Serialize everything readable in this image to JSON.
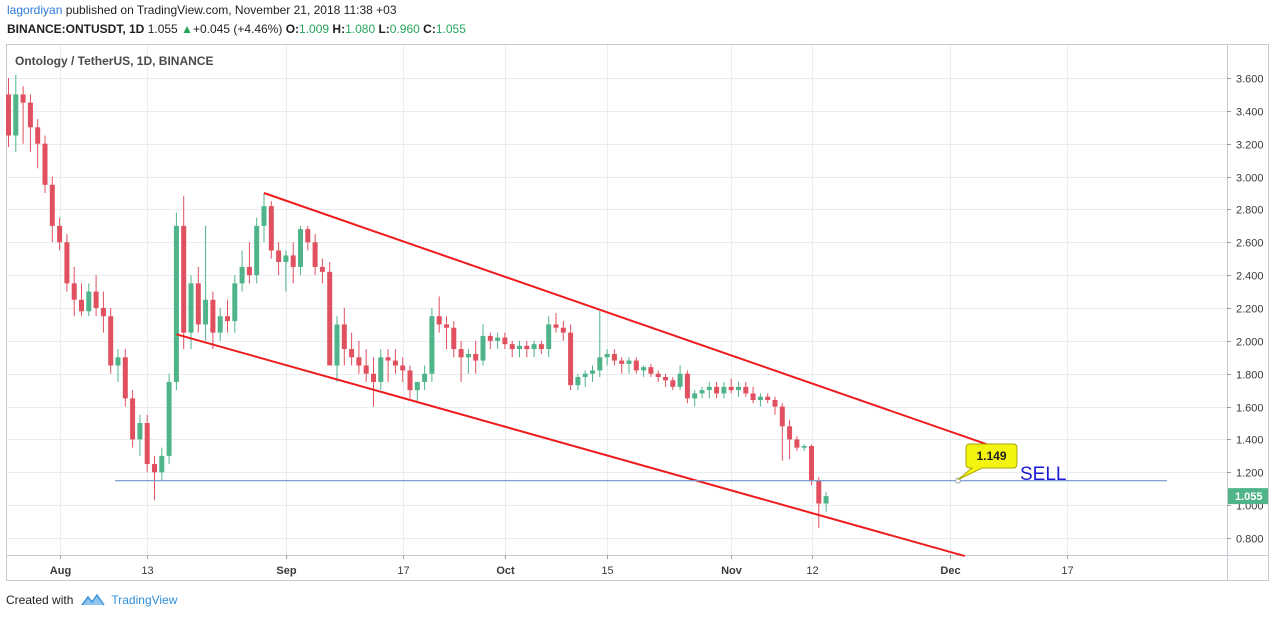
{
  "header": {
    "author": "lagordiyan",
    "published_text": " published on TradingView.com, November 21, 2018 11:38 +03",
    "symbol": "BINANCE:ONTUSDT, 1D",
    "last": "1.055",
    "arrow": "▲",
    "change": "+0.045 (+4.46%)",
    "o_label": "O:",
    "o_value": "1.009",
    "h_label": "H:",
    "h_value": "1.080",
    "l_label": "L:",
    "l_value": "0.960",
    "c_label": "C:",
    "c_value": "1.055"
  },
  "footer": {
    "created_with": "Created with",
    "brand": "TradingView"
  },
  "colors": {
    "up": "#4fb489",
    "down": "#e0505e",
    "trend": "#ee1c1c",
    "hline": "#6f95c9",
    "grid": "#e9edf2",
    "sell": "#1c1cd6",
    "callout": "#f4f411"
  },
  "chart_data": {
    "type": "candlestick",
    "title": "Ontology / TetherUS, 1D, BINANCE",
    "ylim": [
      0.7,
      3.85
    ],
    "y_ticks": [
      "3.600",
      "3.400",
      "3.200",
      "3.000",
      "2.800",
      "2.600",
      "2.400",
      "2.200",
      "2.000",
      "1.800",
      "1.600",
      "1.400",
      "1.200",
      "1.000",
      "0.800"
    ],
    "x_ticks": [
      {
        "label": "Aug",
        "date": "2018-08-01"
      },
      {
        "label": "13",
        "date": "2018-08-13"
      },
      {
        "label": "Sep",
        "date": "2018-09-01"
      },
      {
        "label": "17",
        "date": "2018-09-17"
      },
      {
        "label": "Oct",
        "date": "2018-10-01"
      },
      {
        "label": "15",
        "date": "2018-10-15"
      },
      {
        "label": "Nov",
        "date": "2018-11-01"
      },
      {
        "label": "12",
        "date": "2018-11-12"
      },
      {
        "label": "Dec",
        "date": "2018-12-01"
      },
      {
        "label": "17",
        "date": "2018-12-17"
      }
    ],
    "first_date": "2018-07-25",
    "candles": [
      [
        3.5,
        3.6,
        3.18,
        3.25
      ],
      [
        3.25,
        3.62,
        3.15,
        3.5
      ],
      [
        3.5,
        3.55,
        3.2,
        3.45
      ],
      [
        3.45,
        3.5,
        3.15,
        3.3
      ],
      [
        3.3,
        3.35,
        3.05,
        3.2
      ],
      [
        3.2,
        3.25,
        2.9,
        2.95
      ],
      [
        2.95,
        3.0,
        2.6,
        2.7
      ],
      [
        2.7,
        2.75,
        2.55,
        2.6
      ],
      [
        2.6,
        2.65,
        2.3,
        2.35
      ],
      [
        2.35,
        2.45,
        2.15,
        2.25
      ],
      [
        2.25,
        2.35,
        2.15,
        2.18
      ],
      [
        2.18,
        2.35,
        2.15,
        2.3
      ],
      [
        2.3,
        2.4,
        2.15,
        2.2
      ],
      [
        2.2,
        2.3,
        2.05,
        2.15
      ],
      [
        2.15,
        2.2,
        1.8,
        1.85
      ],
      [
        1.85,
        1.95,
        1.75,
        1.9
      ],
      [
        1.9,
        1.95,
        1.6,
        1.65
      ],
      [
        1.65,
        1.7,
        1.35,
        1.4
      ],
      [
        1.4,
        1.55,
        1.3,
        1.5
      ],
      [
        1.5,
        1.55,
        1.2,
        1.25
      ],
      [
        1.25,
        1.3,
        1.03,
        1.2
      ],
      [
        1.2,
        1.35,
        1.15,
        1.3
      ],
      [
        1.3,
        1.8,
        1.25,
        1.75
      ],
      [
        1.75,
        2.78,
        1.7,
        2.7
      ],
      [
        2.7,
        2.88,
        1.95,
        2.05
      ],
      [
        2.05,
        2.4,
        1.95,
        2.35
      ],
      [
        2.35,
        2.45,
        2.05,
        2.1
      ],
      [
        2.1,
        2.7,
        2.0,
        2.25
      ],
      [
        2.25,
        2.3,
        1.95,
        2.05
      ],
      [
        2.05,
        2.2,
        2.0,
        2.15
      ],
      [
        2.15,
        2.25,
        2.05,
        2.12
      ],
      [
        2.12,
        2.4,
        2.05,
        2.35
      ],
      [
        2.35,
        2.55,
        2.3,
        2.45
      ],
      [
        2.45,
        2.6,
        2.35,
        2.4
      ],
      [
        2.4,
        2.75,
        2.35,
        2.7
      ],
      [
        2.7,
        2.9,
        2.6,
        2.82
      ],
      [
        2.82,
        2.85,
        2.5,
        2.55
      ],
      [
        2.55,
        2.6,
        2.4,
        2.48
      ],
      [
        2.48,
        2.55,
        2.3,
        2.52
      ],
      [
        2.52,
        2.6,
        2.35,
        2.45
      ],
      [
        2.45,
        2.7,
        2.4,
        2.68
      ],
      [
        2.68,
        2.7,
        2.55,
        2.6
      ],
      [
        2.6,
        2.65,
        2.4,
        2.45
      ],
      [
        2.45,
        2.5,
        2.35,
        2.42
      ],
      [
        2.42,
        2.48,
        1.85,
        1.85
      ],
      [
        1.85,
        2.15,
        1.75,
        2.1
      ],
      [
        2.1,
        2.2,
        1.85,
        1.95
      ],
      [
        1.95,
        2.05,
        1.85,
        1.9
      ],
      [
        1.9,
        2.0,
        1.8,
        1.85
      ],
      [
        1.85,
        1.95,
        1.75,
        1.8
      ],
      [
        1.8,
        1.9,
        1.6,
        1.75
      ],
      [
        1.75,
        1.95,
        1.7,
        1.9
      ],
      [
        1.9,
        1.95,
        1.75,
        1.88
      ],
      [
        1.88,
        1.95,
        1.8,
        1.85
      ],
      [
        1.85,
        1.9,
        1.75,
        1.82
      ],
      [
        1.82,
        1.85,
        1.65,
        1.7
      ],
      [
        1.7,
        1.75,
        1.62,
        1.75
      ],
      [
        1.75,
        1.85,
        1.7,
        1.8
      ],
      [
        1.8,
        2.2,
        1.75,
        2.15
      ],
      [
        2.15,
        2.27,
        2.05,
        2.1
      ],
      [
        2.1,
        2.15,
        1.95,
        2.08
      ],
      [
        2.08,
        2.12,
        1.9,
        1.95
      ],
      [
        1.95,
        2.0,
        1.75,
        1.9
      ],
      [
        1.9,
        1.95,
        1.8,
        1.92
      ],
      [
        1.92,
        2.0,
        1.8,
        1.88
      ],
      [
        1.88,
        2.1,
        1.85,
        2.03
      ],
      [
        2.03,
        2.05,
        1.95,
        2.0
      ],
      [
        2.0,
        2.05,
        1.95,
        2.02
      ],
      [
        2.02,
        2.05,
        1.95,
        1.98
      ],
      [
        1.98,
        2.0,
        1.9,
        1.95
      ],
      [
        1.95,
        2.0,
        1.9,
        1.97
      ],
      [
        1.97,
        2.0,
        1.9,
        1.95
      ],
      [
        1.95,
        2.0,
        1.9,
        1.98
      ],
      [
        1.98,
        2.0,
        1.92,
        1.95
      ],
      [
        1.95,
        2.15,
        1.9,
        2.1
      ],
      [
        2.1,
        2.17,
        2.05,
        2.08
      ],
      [
        2.08,
        2.12,
        2.0,
        2.05
      ],
      [
        2.05,
        2.1,
        1.7,
        1.73
      ],
      [
        1.73,
        1.8,
        1.7,
        1.78
      ],
      [
        1.78,
        1.82,
        1.72,
        1.8
      ],
      [
        1.8,
        1.85,
        1.75,
        1.82
      ],
      [
        1.82,
        2.18,
        1.78,
        1.9
      ],
      [
        1.9,
        1.95,
        1.85,
        1.92
      ],
      [
        1.92,
        1.95,
        1.85,
        1.88
      ],
      [
        1.88,
        1.9,
        1.8,
        1.86
      ],
      [
        1.86,
        1.9,
        1.8,
        1.88
      ],
      [
        1.88,
        1.9,
        1.8,
        1.82
      ],
      [
        1.82,
        1.85,
        1.78,
        1.84
      ],
      [
        1.84,
        1.86,
        1.78,
        1.8
      ],
      [
        1.8,
        1.82,
        1.75,
        1.78
      ],
      [
        1.78,
        1.8,
        1.72,
        1.76
      ],
      [
        1.76,
        1.78,
        1.7,
        1.72
      ],
      [
        1.72,
        1.85,
        1.7,
        1.8
      ],
      [
        1.8,
        1.82,
        1.62,
        1.65
      ],
      [
        1.65,
        1.7,
        1.6,
        1.68
      ],
      [
        1.68,
        1.72,
        1.65,
        1.7
      ],
      [
        1.7,
        1.75,
        1.65,
        1.72
      ],
      [
        1.72,
        1.75,
        1.65,
        1.68
      ],
      [
        1.68,
        1.75,
        1.65,
        1.72
      ],
      [
        1.72,
        1.77,
        1.68,
        1.7
      ],
      [
        1.7,
        1.75,
        1.66,
        1.72
      ],
      [
        1.72,
        1.75,
        1.66,
        1.68
      ],
      [
        1.68,
        1.72,
        1.62,
        1.64
      ],
      [
        1.64,
        1.68,
        1.6,
        1.66
      ],
      [
        1.66,
        1.68,
        1.62,
        1.64
      ],
      [
        1.64,
        1.66,
        1.55,
        1.6
      ],
      [
        1.6,
        1.62,
        1.27,
        1.48
      ],
      [
        1.48,
        1.52,
        1.28,
        1.4
      ],
      [
        1.4,
        1.42,
        1.33,
        1.35
      ],
      [
        1.35,
        1.37,
        1.33,
        1.36
      ],
      [
        1.36,
        1.37,
        1.12,
        1.15
      ],
      [
        1.15,
        1.17,
        0.86,
        1.01
      ],
      [
        1.01,
        1.08,
        0.96,
        1.055
      ]
    ],
    "upper_trend": [
      {
        "date": "2018-08-29",
        "value": 2.9
      },
      {
        "date": "2018-12-08",
        "value": 1.34
      }
    ],
    "lower_trend": [
      {
        "date": "2018-08-17",
        "value": 2.04
      },
      {
        "date": "2018-12-03",
        "value": 0.69
      }
    ],
    "horizontal_level": 1.149,
    "level_label": "1.149",
    "sell_text": "SELL",
    "last_price_label": "1.055"
  }
}
